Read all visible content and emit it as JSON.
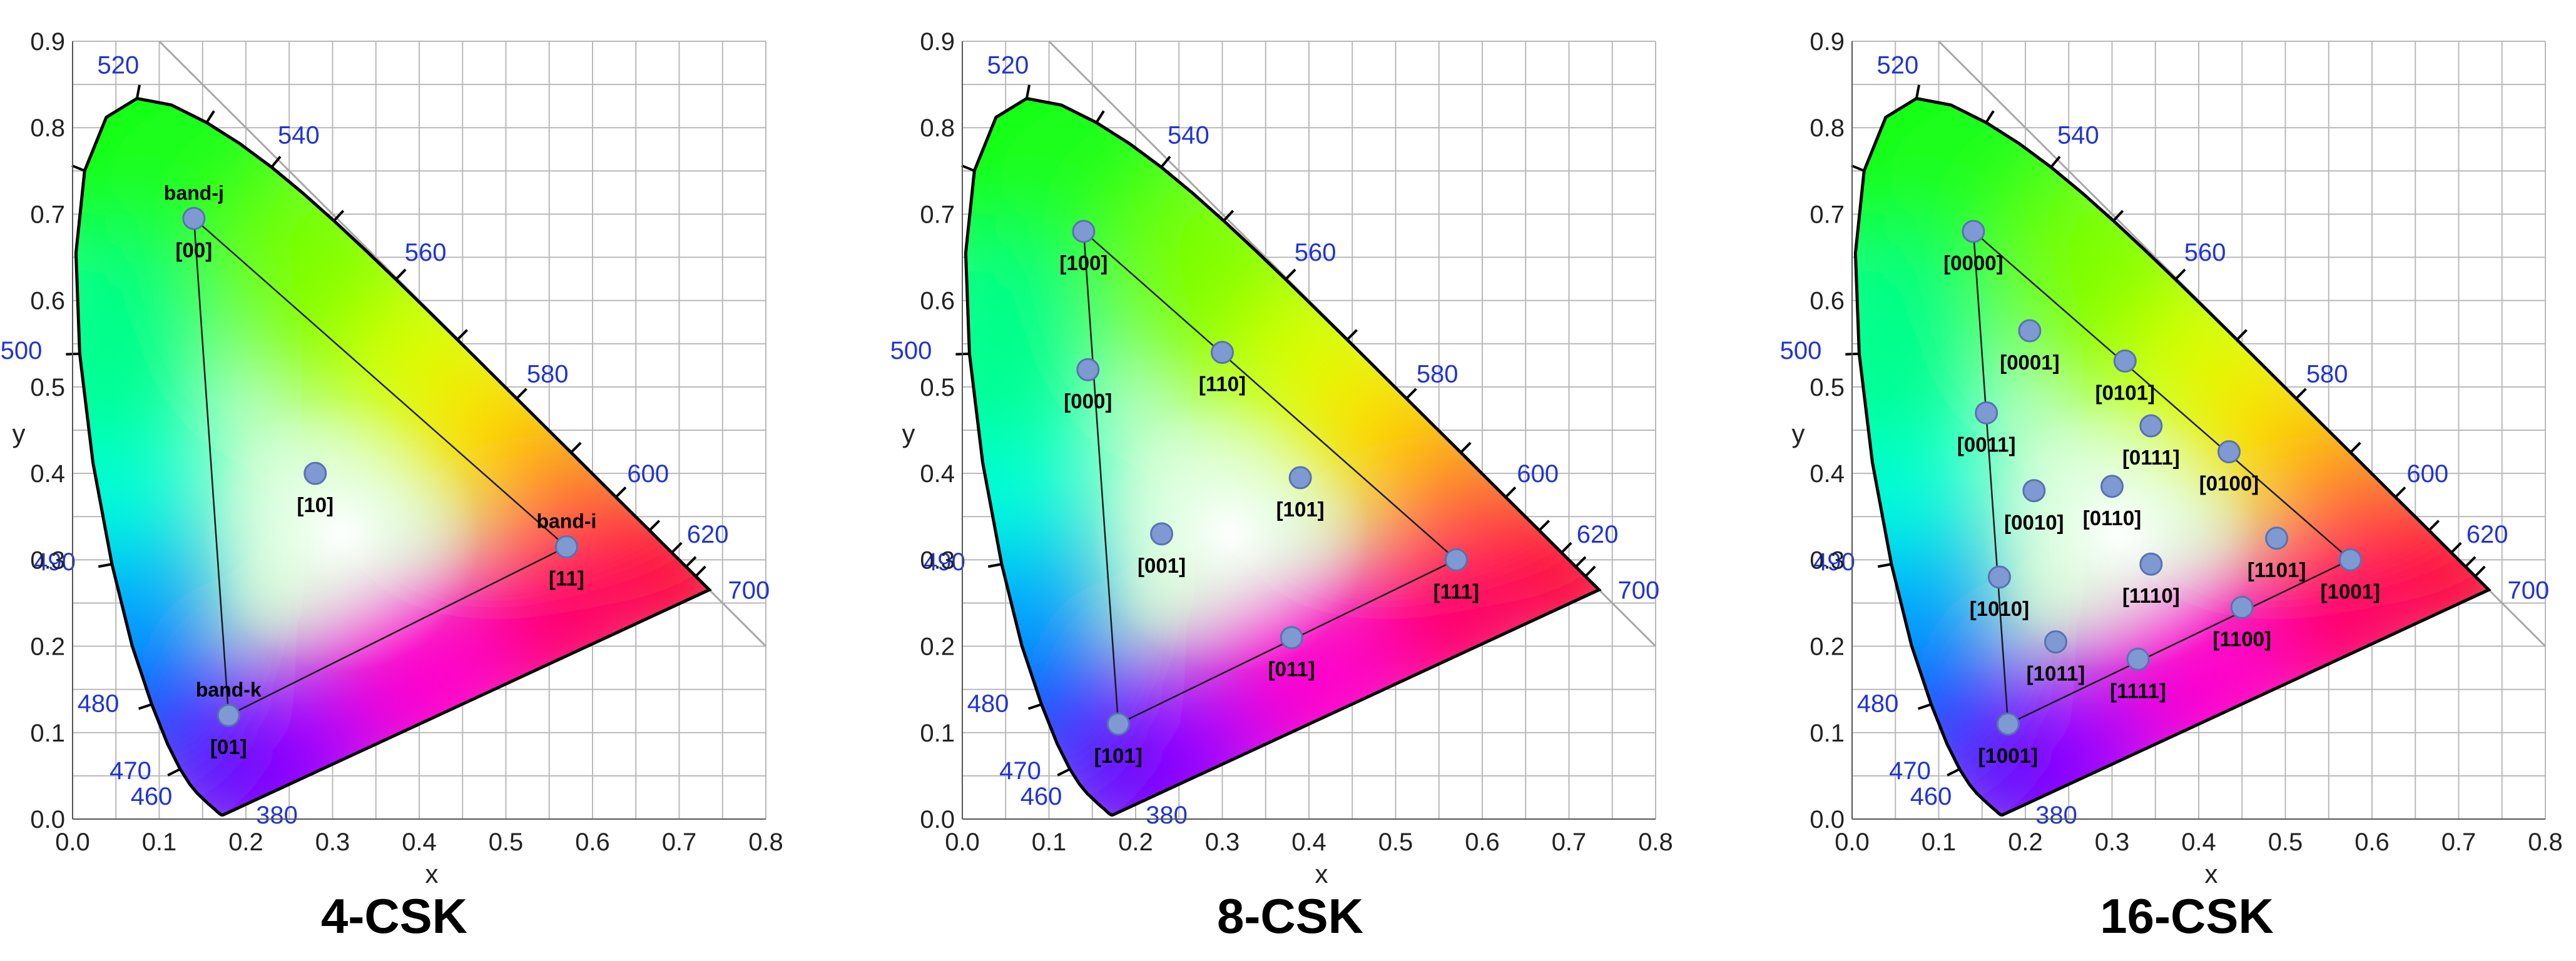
{
  "axis": {
    "xlabel": "x",
    "ylabel": "y",
    "xlim": [
      0.0,
      0.8
    ],
    "ylim": [
      0.0,
      0.9
    ]
  },
  "x_tick_labels": [
    "0.0",
    "0.1",
    "0.2",
    "0.3",
    "0.4",
    "0.5",
    "0.6",
    "0.7",
    "0.8"
  ],
  "y_tick_labels": [
    "0.0",
    "0.1",
    "0.2",
    "0.3",
    "0.4",
    "0.5",
    "0.6",
    "0.7",
    "0.8",
    "0.9"
  ],
  "wavelength_labels": [
    {
      "text": "380",
      "wl": 380
    },
    {
      "text": "460",
      "wl": 460
    },
    {
      "text": "470",
      "wl": 470
    },
    {
      "text": "480",
      "wl": 480
    },
    {
      "text": "490",
      "wl": 490
    },
    {
      "text": "500",
      "wl": 500
    },
    {
      "text": "520",
      "wl": 520
    },
    {
      "text": "540",
      "wl": 540
    },
    {
      "text": "560",
      "wl": 560
    },
    {
      "text": "580",
      "wl": 580
    },
    {
      "text": "600",
      "wl": 600
    },
    {
      "text": "620",
      "wl": 620
    },
    {
      "text": "700",
      "wl": 700
    }
  ],
  "colors": {
    "point_fill": "#7f9ad2",
    "point_stroke": "#5872b0",
    "wavelength_text": "#1f34d6",
    "grid": "#b9b9b9"
  },
  "chart_data": [
    {
      "type": "scatter",
      "title": "4-CSK",
      "xlabel": "x",
      "ylabel": "y",
      "xlim": [
        0.0,
        0.8
      ],
      "ylim": [
        0.0,
        0.9
      ],
      "grid": true,
      "triangle": [
        [
          0.14,
          0.695
        ],
        [
          0.57,
          0.315
        ],
        [
          0.18,
          0.12
        ]
      ],
      "band_labels": [
        {
          "text": "band-j",
          "x": 0.14,
          "y": 0.695
        },
        {
          "text": "band-i",
          "x": 0.57,
          "y": 0.315
        },
        {
          "text": "band-k",
          "x": 0.18,
          "y": 0.12
        }
      ],
      "points": [
        {
          "label": "[00]",
          "x": 0.14,
          "y": 0.695
        },
        {
          "label": "[10]",
          "x": 0.28,
          "y": 0.4
        },
        {
          "label": "[11]",
          "x": 0.57,
          "y": 0.315
        },
        {
          "label": "[01]",
          "x": 0.18,
          "y": 0.12
        }
      ]
    },
    {
      "type": "scatter",
      "title": "8-CSK",
      "xlabel": "x",
      "ylabel": "y",
      "xlim": [
        0.0,
        0.8
      ],
      "ylim": [
        0.0,
        0.9
      ],
      "grid": true,
      "triangle": [
        [
          0.14,
          0.68
        ],
        [
          0.57,
          0.3
        ],
        [
          0.18,
          0.11
        ]
      ],
      "band_labels": [],
      "points": [
        {
          "label": "[100]",
          "x": 0.14,
          "y": 0.68
        },
        {
          "label": "[000]",
          "x": 0.145,
          "y": 0.52
        },
        {
          "label": "[110]",
          "x": 0.3,
          "y": 0.54
        },
        {
          "label": "[101]",
          "x": 0.39,
          "y": 0.395
        },
        {
          "label": "[001]",
          "x": 0.23,
          "y": 0.33
        },
        {
          "label": "[111]",
          "x": 0.57,
          "y": 0.3
        },
        {
          "label": "[011]",
          "x": 0.38,
          "y": 0.21
        },
        {
          "label": "[101]",
          "x": 0.18,
          "y": 0.11
        }
      ]
    },
    {
      "type": "scatter",
      "title": "16-CSK",
      "xlabel": "x",
      "ylabel": "y",
      "xlim": [
        0.0,
        0.8
      ],
      "ylim": [
        0.0,
        0.9
      ],
      "grid": true,
      "triangle": [
        [
          0.14,
          0.68
        ],
        [
          0.575,
          0.3
        ],
        [
          0.18,
          0.11
        ]
      ],
      "band_labels": [],
      "points": [
        {
          "label": "[0000]",
          "x": 0.14,
          "y": 0.68
        },
        {
          "label": "[0001]",
          "x": 0.205,
          "y": 0.565
        },
        {
          "label": "[0101]",
          "x": 0.315,
          "y": 0.53
        },
        {
          "label": "[0011]",
          "x": 0.155,
          "y": 0.47
        },
        {
          "label": "[0111]",
          "x": 0.345,
          "y": 0.455
        },
        {
          "label": "[0100]",
          "x": 0.435,
          "y": 0.425
        },
        {
          "label": "[0010]",
          "x": 0.21,
          "y": 0.38
        },
        {
          "label": "[0110]",
          "x": 0.3,
          "y": 0.385
        },
        {
          "label": "[1101]",
          "x": 0.49,
          "y": 0.325
        },
        {
          "label": "[1001]",
          "x": 0.575,
          "y": 0.3
        },
        {
          "label": "[1010]",
          "x": 0.17,
          "y": 0.28
        },
        {
          "label": "[1110]",
          "x": 0.345,
          "y": 0.295
        },
        {
          "label": "[1100]",
          "x": 0.45,
          "y": 0.245
        },
        {
          "label": "[1011]",
          "x": 0.235,
          "y": 0.205
        },
        {
          "label": "[1111]",
          "x": 0.33,
          "y": 0.185
        },
        {
          "label": "[1001]",
          "x": 0.18,
          "y": 0.11
        }
      ]
    }
  ]
}
